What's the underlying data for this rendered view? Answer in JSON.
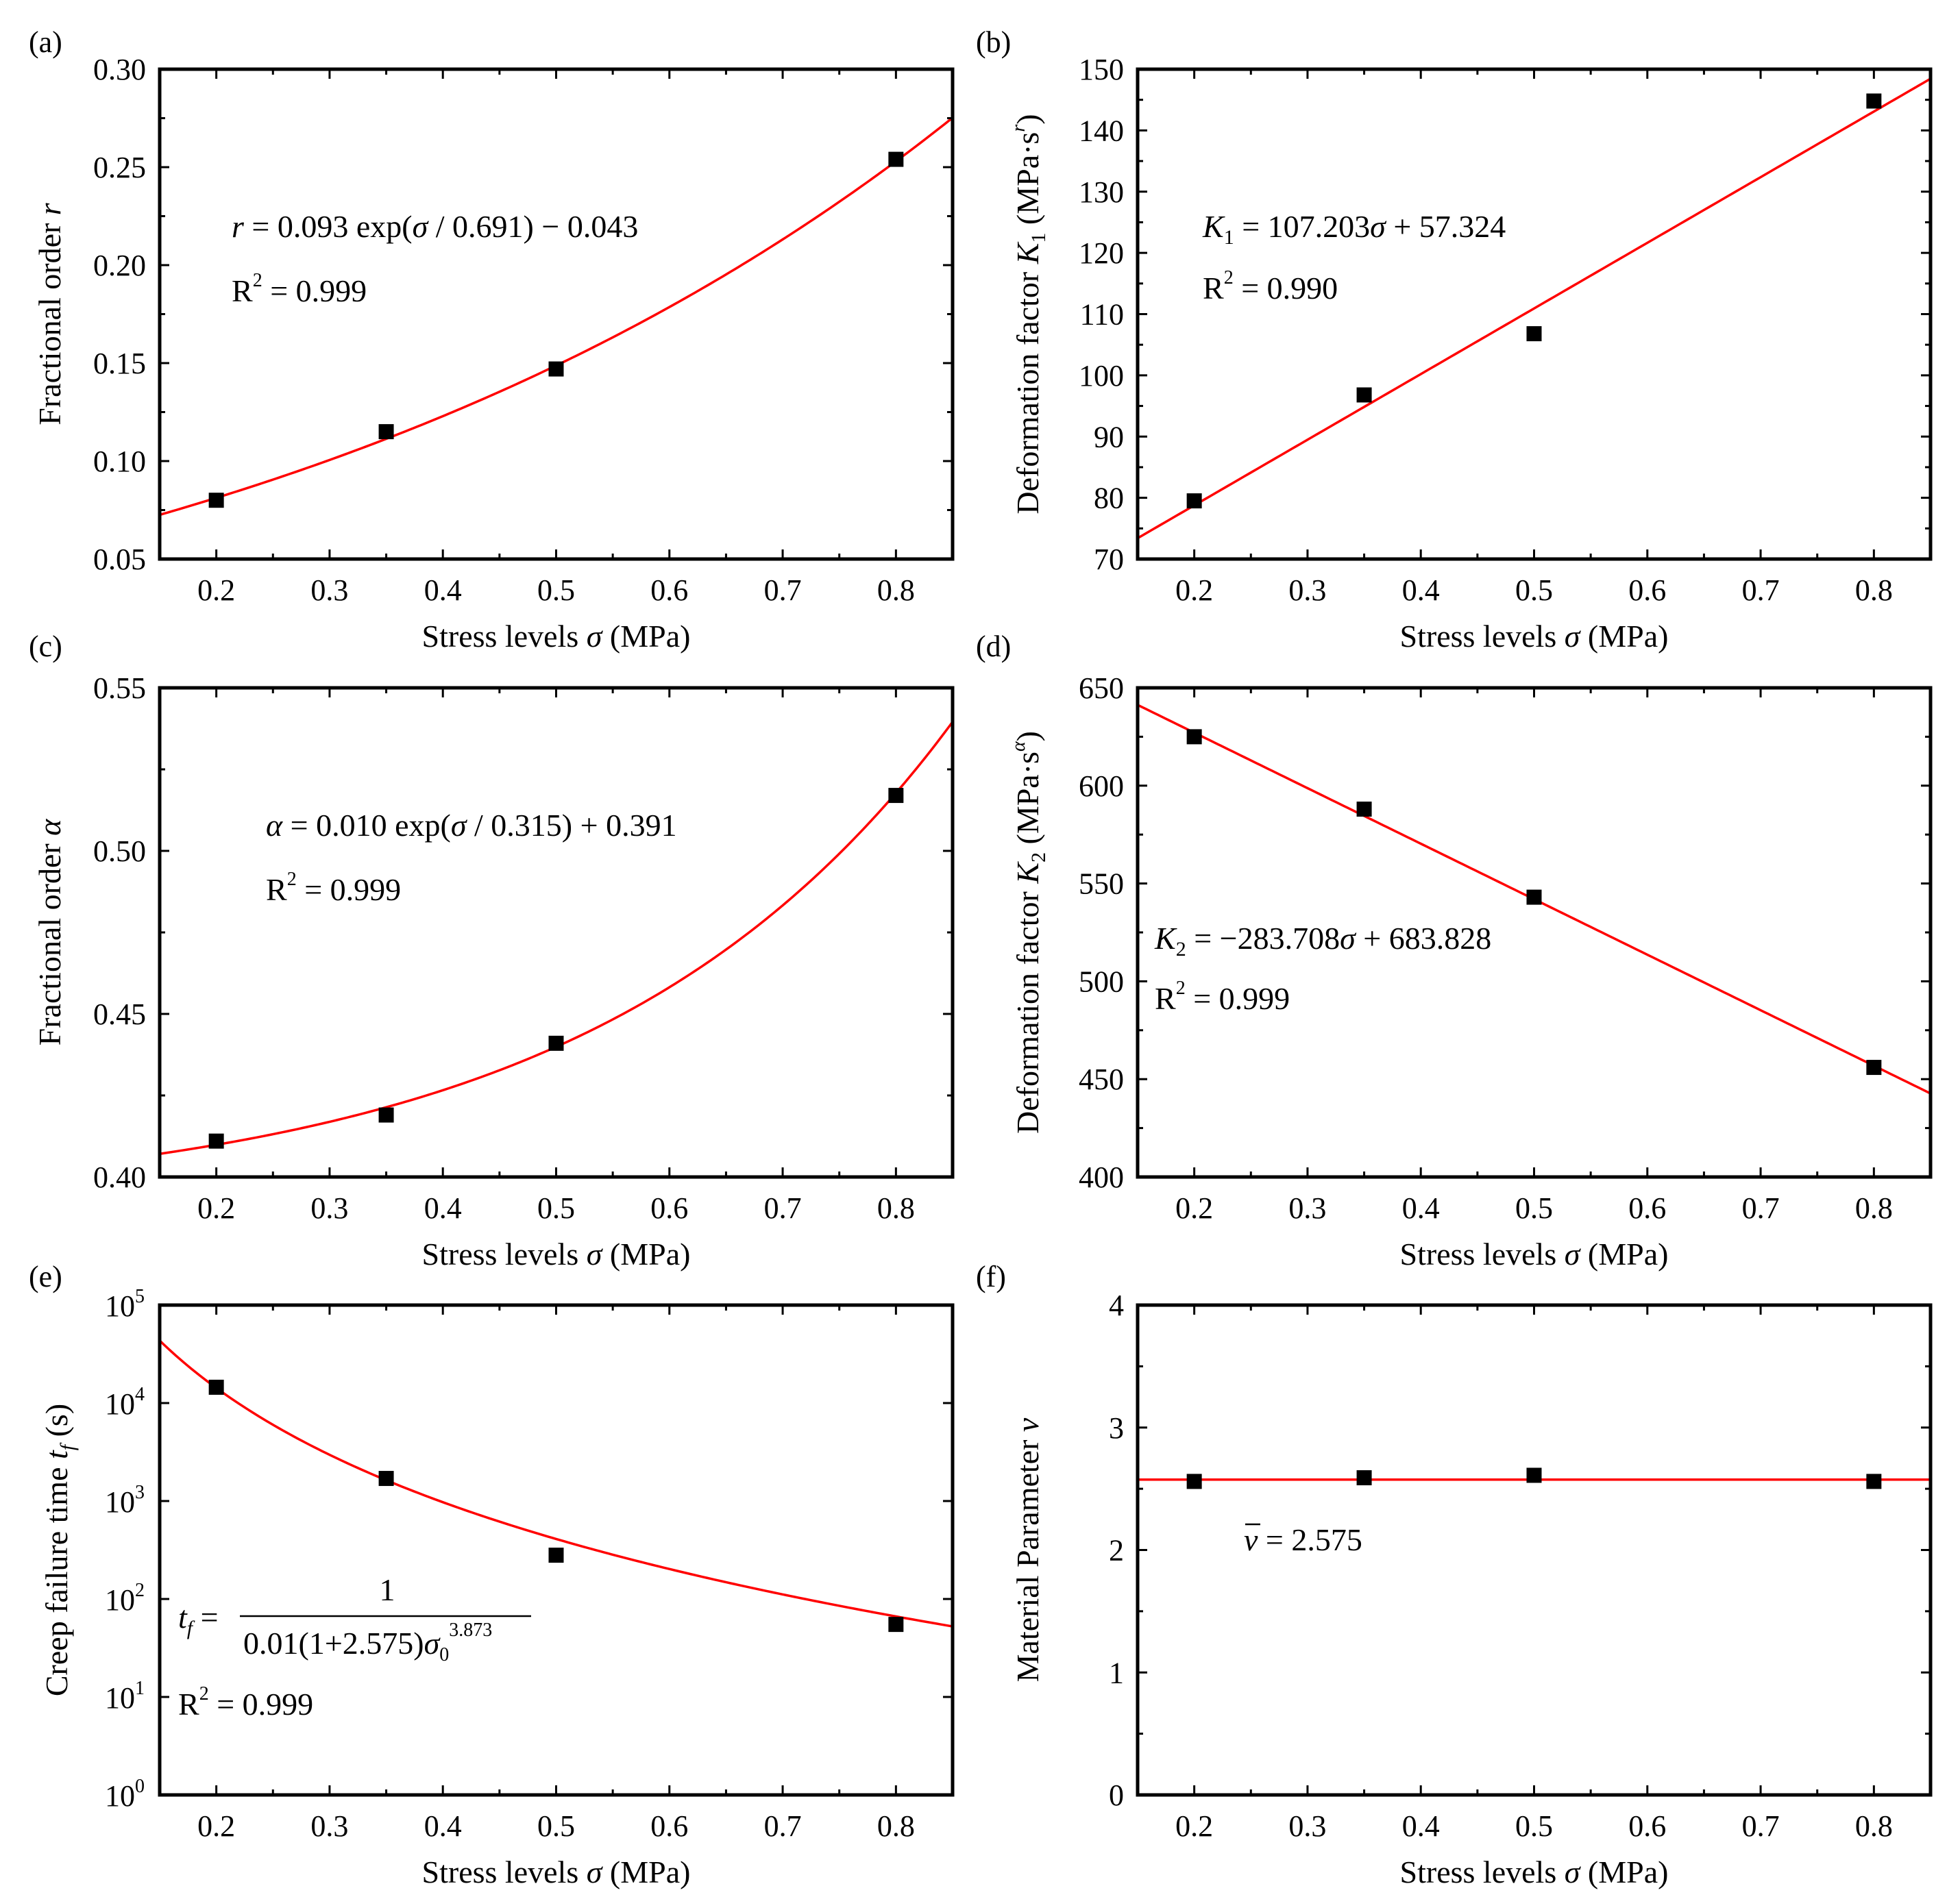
{
  "chart_data": [
    {
      "panel": "(a)",
      "type": "scatter",
      "x": [
        0.2,
        0.35,
        0.5,
        0.8
      ],
      "y": [
        0.08,
        0.115,
        0.147,
        0.254
      ],
      "xlim": [
        0.15,
        0.85
      ],
      "ylim": [
        0.05,
        0.3
      ],
      "xticks": [
        "0.2",
        "0.3",
        "0.4",
        "0.5",
        "0.6",
        "0.7",
        "0.8"
      ],
      "yticks": [
        "0.05",
        "0.10",
        "0.15",
        "0.20",
        "0.25",
        "0.30"
      ],
      "xlabel": "Stress levels σ (MPa)",
      "ylabel": "Fractional order r",
      "fit": {
        "kind": "exp",
        "a": 0.093,
        "b": 0.691,
        "c": -0.043
      },
      "equation": "r = 0.093 exp(σ / 0.691) − 0.043",
      "r2": "R² = 0.999"
    },
    {
      "panel": "(b)",
      "type": "scatter",
      "x": [
        0.2,
        0.35,
        0.5,
        0.8
      ],
      "y": [
        79.5,
        96.8,
        106.8,
        144.8
      ],
      "xlim": [
        0.15,
        0.85
      ],
      "ylim": [
        70,
        150
      ],
      "xticks": [
        "0.2",
        "0.3",
        "0.4",
        "0.5",
        "0.6",
        "0.7",
        "0.8"
      ],
      "yticks": [
        "70",
        "80",
        "90",
        "100",
        "110",
        "120",
        "130",
        "140",
        "150"
      ],
      "xlabel": "Stress levels σ (MPa)",
      "ylabel": "Deformation factor K₁ (MPa·s^r)",
      "fit": {
        "kind": "lin",
        "m": 107.203,
        "b": 57.324
      },
      "equation": "K₁ = 107.203σ + 57.324",
      "r2": "R² = 0.990"
    },
    {
      "panel": "(c)",
      "type": "scatter",
      "x": [
        0.2,
        0.35,
        0.5,
        0.8
      ],
      "y": [
        0.411,
        0.419,
        0.441,
        0.517
      ],
      "xlim": [
        0.15,
        0.85
      ],
      "ylim": [
        0.4,
        0.55
      ],
      "xticks": [
        "0.2",
        "0.3",
        "0.4",
        "0.5",
        "0.6",
        "0.7",
        "0.8"
      ],
      "yticks": [
        "0.40",
        "0.45",
        "0.50",
        "0.55"
      ],
      "xlabel": "Stress levels σ (MPa)",
      "ylabel": "Fractional order α",
      "fit": {
        "kind": "exp",
        "a": 0.01,
        "b": 0.315,
        "c": 0.391
      },
      "equation": "α = 0.010 exp(σ / 0.315) + 0.391",
      "r2": "R² = 0.999"
    },
    {
      "panel": "(d)",
      "type": "scatter",
      "x": [
        0.2,
        0.35,
        0.5,
        0.8
      ],
      "y": [
        625,
        588,
        543,
        456
      ],
      "xlim": [
        0.15,
        0.85
      ],
      "ylim": [
        400,
        650
      ],
      "xticks": [
        "0.2",
        "0.3",
        "0.4",
        "0.5",
        "0.6",
        "0.7",
        "0.8"
      ],
      "yticks": [
        "400",
        "450",
        "500",
        "550",
        "600",
        "650"
      ],
      "xlabel": "Stress levels σ (MPa)",
      "ylabel": "Deformation factor K₂ (MPa·s^α)",
      "fit": {
        "kind": "lin",
        "m": -283.708,
        "b": 683.828
      },
      "equation": "K₂ = −283.708σ + 683.828",
      "r2": "R² = 0.999"
    },
    {
      "panel": "(e)",
      "type": "scatter",
      "yscale": "log",
      "x": [
        0.2,
        0.35,
        0.5,
        0.8
      ],
      "y": [
        14500,
        1700,
        280,
        55
      ],
      "xlim": [
        0.15,
        0.85
      ],
      "ylim": [
        1,
        100000
      ],
      "xticks": [
        "0.2",
        "0.3",
        "0.4",
        "0.5",
        "0.6",
        "0.7",
        "0.8"
      ],
      "yticks": [
        "10^0",
        "10^1",
        "10^2",
        "10^3",
        "10^4",
        "10^5"
      ],
      "xlabel": "Stress levels σ (MPa)",
      "ylabel": "Creep failure time t_f (s)",
      "fit": {
        "kind": "power",
        "k": 0.01,
        "v": 2.575,
        "p": 3.873
      },
      "equation": "t_f = 1 / (0.01(1+2.575)σ₀^3.873)",
      "equation_num": "1",
      "equation_den": "0.01(1+2.575)σ₀",
      "equation_exp": "3.873",
      "r2": "R² = 0.999"
    },
    {
      "panel": "(f)",
      "type": "scatter",
      "x": [
        0.2,
        0.35,
        0.5,
        0.8
      ],
      "y": [
        2.56,
        2.59,
        2.61,
        2.56
      ],
      "xlim": [
        0.15,
        0.85
      ],
      "ylim": [
        0,
        4
      ],
      "xticks": [
        "0.2",
        "0.3",
        "0.4",
        "0.5",
        "0.6",
        "0.7",
        "0.8"
      ],
      "yticks": [
        "0",
        "1",
        "2",
        "3",
        "4"
      ],
      "xlabel": "Stress levels σ (MPa)",
      "ylabel": "Material Parameter v",
      "fit": {
        "kind": "const",
        "c": 2.575
      },
      "equation": "v̄ = 2.575"
    }
  ]
}
